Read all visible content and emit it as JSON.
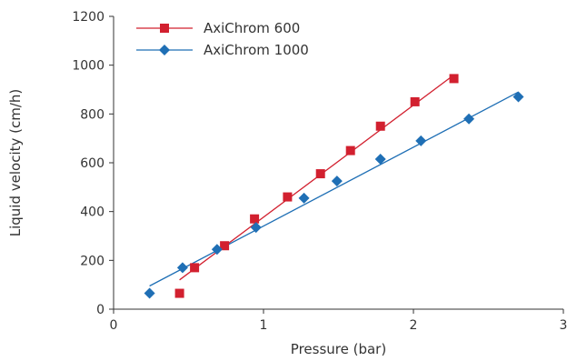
{
  "chart_data": {
    "type": "scatter",
    "title": "",
    "xlabel": "Pressure (bar)",
    "ylabel": "Liquid velocity (cm/h)",
    "xlim": [
      0,
      3
    ],
    "ylim": [
      0,
      1200
    ],
    "xticks": [
      0,
      1,
      2,
      3
    ],
    "yticks": [
      0,
      200,
      400,
      600,
      800,
      1000,
      1200
    ],
    "grid": false,
    "legend_position": "top-left",
    "series": [
      {
        "name": "AxiChrom 600",
        "color": "#d2202f",
        "marker": "square",
        "x": [
          0.44,
          0.54,
          0.74,
          0.94,
          1.16,
          1.38,
          1.58,
          1.78,
          2.01,
          2.27
        ],
        "y": [
          65,
          170,
          260,
          370,
          460,
          555,
          650,
          750,
          850,
          945
        ],
        "trendline": {
          "x": [
            0.44,
            2.27
          ],
          "y": [
            120,
            960
          ]
        }
      },
      {
        "name": "AxiChrom 1000",
        "color": "#1f6fb5",
        "marker": "diamond",
        "x": [
          0.24,
          0.46,
          0.69,
          0.95,
          1.27,
          1.49,
          1.78,
          2.05,
          2.37,
          2.7
        ],
        "y": [
          65,
          170,
          245,
          335,
          455,
          525,
          615,
          690,
          780,
          870
        ],
        "trendline": {
          "x": [
            0.24,
            2.7
          ],
          "y": [
            95,
            890
          ]
        }
      }
    ]
  }
}
